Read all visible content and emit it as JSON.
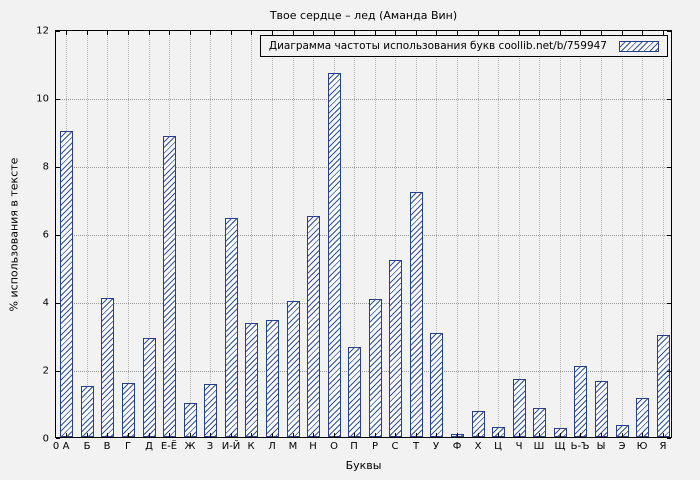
{
  "chart_data": {
    "type": "bar",
    "title": "Твое сердце – лед (Аманда Вин)",
    "legend": "Диаграмма частоты использования букв coollib.net/b/759947",
    "legend_position": "top-right",
    "xlabel": "Буквы",
    "ylabel": "% использования в тексте",
    "origin_label": "0",
    "ylim": [
      0,
      12
    ],
    "yticks": [
      0,
      2,
      4,
      6,
      8,
      10,
      12
    ],
    "grid": true,
    "bar_fill": "hatched",
    "bar_color": "#27408b",
    "background_color": "#f2f2f2",
    "categories": [
      "А",
      "Б",
      "В",
      "Г",
      "Д",
      "Е-Ё",
      "Ж",
      "З",
      "И-Й",
      "К",
      "Л",
      "М",
      "Н",
      "О",
      "П",
      "Р",
      "С",
      "Т",
      "У",
      "Ф",
      "Х",
      "Ц",
      "Ч",
      "Ш",
      "Щ",
      "Ь-Ъ",
      "Ы",
      "Э",
      "Ю",
      "Я"
    ],
    "values": [
      9.0,
      1.5,
      4.1,
      1.6,
      2.9,
      8.85,
      1.0,
      1.55,
      6.45,
      3.35,
      3.45,
      4.0,
      6.5,
      10.7,
      2.65,
      4.05,
      5.2,
      7.2,
      3.05,
      0.1,
      0.75,
      0.3,
      1.7,
      0.85,
      0.25,
      2.1,
      1.65,
      0.35,
      1.15,
      3.0
    ]
  }
}
